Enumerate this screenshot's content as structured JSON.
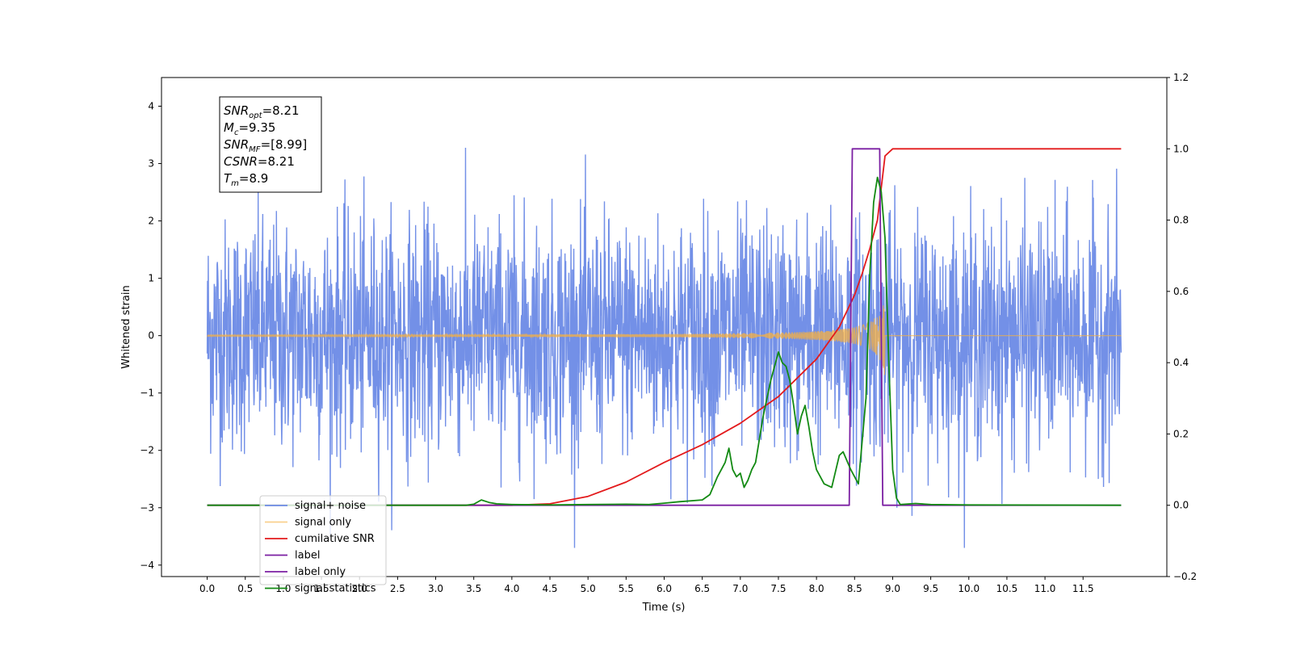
{
  "chart_data": {
    "type": "line",
    "xlabel": "Time (s)",
    "ylabel": "Whitened strain",
    "xlim": [
      -0.6,
      12.6
    ],
    "ylim_left": [
      -4.2,
      4.5
    ],
    "ylim_right": [
      -0.2,
      1.2
    ],
    "x_ticks": [
      "0.0",
      "0.5",
      "1.0",
      "1.5",
      "2.0",
      "2.5",
      "3.0",
      "3.5",
      "4.0",
      "4.5",
      "5.0",
      "5.5",
      "6.0",
      "6.5",
      "7.0",
      "7.5",
      "8.0",
      "8.5",
      "9.0",
      "9.5",
      "10.0",
      "10.5",
      "11.0",
      "11.5"
    ],
    "y_ticks_left": [
      "4",
      "3",
      "2",
      "1",
      "0",
      "−1",
      "−2",
      "−3",
      "−4"
    ],
    "y_ticks_right": [
      "1.2",
      "1.0",
      "0.8",
      "0.6",
      "0.4",
      "0.2",
      "0.0",
      "−0.2"
    ],
    "grid": false,
    "legend_position": "lower-left",
    "annotation": {
      "lines": [
        {
          "symbol": "SNR",
          "sub": "opt",
          "value": "=8.21"
        },
        {
          "symbol": "M",
          "sub": "c",
          "value": "=9.35"
        },
        {
          "symbol": "SNR",
          "sub": "MF",
          "value": "=[8.99]"
        },
        {
          "symbol": "CSNR",
          "sub": "",
          "value": "=8.21"
        },
        {
          "symbol": "T",
          "sub": "m",
          "value": "=8.9"
        }
      ]
    },
    "series": [
      {
        "name": "signal+ noise",
        "color": "#6b8ae6",
        "axis": "left",
        "kind": "noise",
        "x_range": [
          0.0,
          12.0
        ],
        "std": 1.0
      },
      {
        "name": "signal only",
        "color": "#f5b041",
        "axis": "left",
        "kind": "chirp",
        "x_range": [
          0.0,
          8.9
        ],
        "peak_amplitude": 0.75,
        "merger_time": 8.9
      },
      {
        "name": "cumilative SNR",
        "color": "#e31a1c",
        "axis": "right",
        "x": [
          0,
          1,
          2,
          3,
          4,
          4.5,
          5,
          5.5,
          6,
          6.5,
          7,
          7.5,
          8,
          8.3,
          8.5,
          8.6,
          8.7,
          8.8,
          8.9,
          9.0,
          12.0
        ],
        "y": [
          0,
          0,
          0,
          0,
          0,
          0.004,
          0.025,
          0.065,
          0.12,
          0.17,
          0.23,
          0.305,
          0.41,
          0.5,
          0.59,
          0.65,
          0.72,
          0.8,
          0.98,
          1.0,
          1.0
        ]
      },
      {
        "name": "label",
        "color": "#7b1fa2",
        "axis": "right",
        "x": [
          0,
          8.43,
          8.47,
          8.83,
          8.87,
          12.0
        ],
        "y": [
          0,
          0,
          1,
          1,
          0,
          0
        ]
      },
      {
        "name": "label only",
        "color": "#7b1fa2",
        "axis": "right",
        "hidden": true,
        "x": [],
        "y": []
      },
      {
        "name": "signal statistics",
        "color": "#138a13",
        "axis": "right",
        "x": [
          0,
          3.4,
          3.5,
          3.6,
          3.7,
          3.8,
          4.0,
          4.5,
          5.0,
          5.5,
          5.8,
          6.0,
          6.2,
          6.5,
          6.6,
          6.7,
          6.8,
          6.85,
          6.9,
          6.95,
          7.0,
          7.05,
          7.1,
          7.15,
          7.2,
          7.3,
          7.4,
          7.5,
          7.55,
          7.6,
          7.65,
          7.7,
          7.75,
          7.8,
          7.85,
          7.9,
          7.95,
          8.0,
          8.1,
          8.2,
          8.3,
          8.35,
          8.45,
          8.55,
          8.65,
          8.7,
          8.75,
          8.8,
          8.85,
          8.9,
          8.95,
          9.0,
          9.05,
          9.1,
          9.3,
          9.5,
          10.0,
          12.0
        ],
        "y": [
          0,
          0,
          0.003,
          0.015,
          0.008,
          0.004,
          0.002,
          0.001,
          0.002,
          0.003,
          0.002,
          0.006,
          0.01,
          0.015,
          0.03,
          0.08,
          0.12,
          0.16,
          0.1,
          0.08,
          0.09,
          0.05,
          0.07,
          0.1,
          0.12,
          0.25,
          0.35,
          0.43,
          0.4,
          0.39,
          0.35,
          0.28,
          0.2,
          0.25,
          0.28,
          0.22,
          0.15,
          0.1,
          0.06,
          0.05,
          0.14,
          0.15,
          0.1,
          0.06,
          0.3,
          0.65,
          0.85,
          0.92,
          0.88,
          0.75,
          0.4,
          0.1,
          0.02,
          0.002,
          0.005,
          0.002,
          0.001,
          0.0
        ]
      }
    ]
  }
}
